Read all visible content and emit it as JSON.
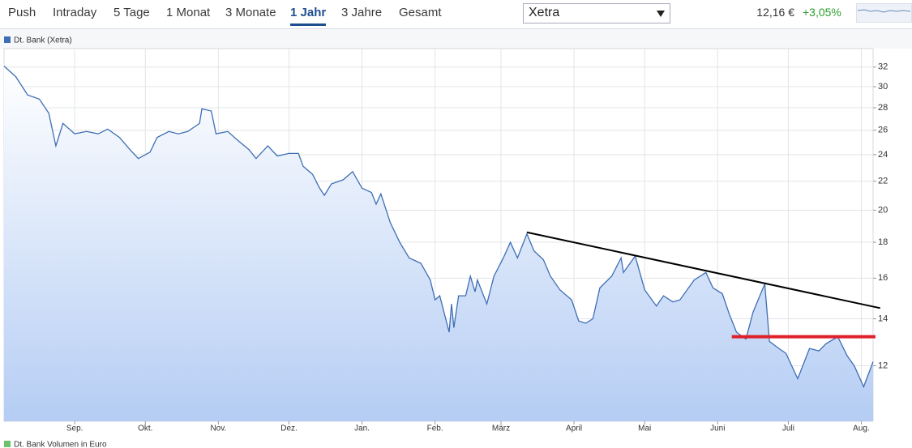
{
  "toolbar": {
    "tabs": [
      {
        "label": "Push"
      },
      {
        "label": "Intraday"
      },
      {
        "label": "5 Tage"
      },
      {
        "label": "1 Monat"
      },
      {
        "label": "3 Monate"
      },
      {
        "label": "1 Jahr",
        "active": true
      },
      {
        "label": "3 Jahre"
      },
      {
        "label": "Gesamt"
      }
    ],
    "exchange": "Xetra",
    "price": "12,16 €",
    "change": "+3,05%"
  },
  "chart_data": {
    "type": "line",
    "x": [
      0,
      5,
      10,
      15,
      19,
      22,
      25,
      30,
      35,
      40,
      44,
      49,
      53,
      57,
      62,
      65,
      70,
      74,
      78,
      83,
      84,
      88,
      90,
      95,
      99,
      104,
      107,
      112,
      116,
      121,
      125,
      127,
      131,
      134,
      136,
      139,
      144,
      148,
      152,
      156,
      158,
      160,
      164,
      168,
      172,
      177,
      181,
      183,
      185,
      189,
      190,
      191,
      193,
      196,
      198,
      200,
      201,
      205,
      208,
      212,
      215,
      218,
      222,
      225,
      229,
      232,
      236,
      241,
      244,
      247,
      250,
      253,
      258,
      262,
      263,
      268,
      272,
      277,
      280,
      284,
      287,
      293,
      298,
      301,
      305,
      308,
      311,
      315,
      318,
      323,
      325,
      329,
      332,
      337,
      342,
      346,
      349,
      354,
      358,
      361,
      365,
      369
    ],
    "series": [
      {
        "name": "Dt. Bank (Xetra)",
        "color": "#3d6eb4",
        "values": [
          32.1,
          31.0,
          29.2,
          28.8,
          27.5,
          24.7,
          26.6,
          25.7,
          25.9,
          25.7,
          26.1,
          25.4,
          24.5,
          23.7,
          24.2,
          25.4,
          25.9,
          25.7,
          25.9,
          26.6,
          27.9,
          27.7,
          25.7,
          25.9,
          25.2,
          24.4,
          23.7,
          24.7,
          23.9,
          24.1,
          24.1,
          23.1,
          22.5,
          21.5,
          21.0,
          21.8,
          22.1,
          22.7,
          21.5,
          21.2,
          20.4,
          21.1,
          19.2,
          18.0,
          17.1,
          16.8,
          15.9,
          14.9,
          15.1,
          13.4,
          14.7,
          13.6,
          15.1,
          15.1,
          16.1,
          15.3,
          15.9,
          14.7,
          16.1,
          17.1,
          18.0,
          17.1,
          18.5,
          17.5,
          17.0,
          16.1,
          15.4,
          14.9,
          13.9,
          13.8,
          14.0,
          15.5,
          16.1,
          17.1,
          16.3,
          17.2,
          15.4,
          14.6,
          15.1,
          14.8,
          14.9,
          15.9,
          16.3,
          15.5,
          15.2,
          14.2,
          13.4,
          13.1,
          14.3,
          15.7,
          13.0,
          12.7,
          12.5,
          11.5,
          12.7,
          12.6,
          12.9,
          13.2,
          12.4,
          12.0,
          11.2,
          12.16
        ]
      }
    ],
    "area_color": "#b5cdf4",
    "trend_lines": [
      {
        "x": [
          222,
          372
        ],
        "values": [
          18.6,
          14.5
        ],
        "color": "#000000"
      },
      {
        "x": [
          309,
          370
        ],
        "values": [
          13.2,
          13.2
        ],
        "color": "#e0202a"
      }
    ],
    "xlim": [
      0,
      369
    ],
    "xticks": [
      {
        "value": 30,
        "label": "Sep."
      },
      {
        "value": 60,
        "label": "Okt."
      },
      {
        "value": 91,
        "label": "Nov."
      },
      {
        "value": 121,
        "label": "Dez."
      },
      {
        "value": 152,
        "label": "Jan."
      },
      {
        "value": 183,
        "label": "Feb."
      },
      {
        "value": 211,
        "label": "März"
      },
      {
        "value": 242,
        "label": "April"
      },
      {
        "value": 272,
        "label": "Mai"
      },
      {
        "value": 303,
        "label": "Juni"
      },
      {
        "value": 333,
        "label": "Juli"
      },
      {
        "value": 364,
        "label": "Aug."
      }
    ],
    "ylim": [
      10,
      34
    ],
    "yticks": [
      12,
      14,
      16,
      18,
      20,
      22,
      24,
      26,
      28,
      30,
      32
    ],
    "log_y": true,
    "grid": true,
    "secondary_legend": {
      "name": "Dt. Bank Volumen in Euro",
      "color": "#6cc36c"
    }
  }
}
